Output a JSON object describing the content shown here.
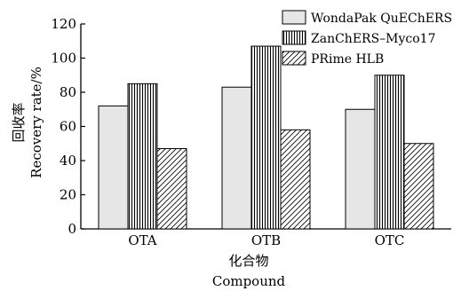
{
  "chart_data": {
    "type": "bar",
    "categories": [
      "OTA",
      "OTB",
      "OTC"
    ],
    "series": [
      {
        "name": "WondaPak QuEChERS",
        "values": [
          72,
          83,
          70
        ],
        "pattern": "solid-light"
      },
      {
        "name": "ZanChERS–Myco17",
        "values": [
          85,
          107,
          90
        ],
        "pattern": "vertical-lines"
      },
      {
        "name": "PRime HLB",
        "values": [
          47,
          58,
          50
        ],
        "pattern": "diagonal-hatch"
      }
    ],
    "title": "",
    "xlabel": "化合物",
    "xlabel_en": "Compound",
    "ylabel": "回收率",
    "ylabel_en": "Recovery rate/%",
    "ylim": [
      0,
      120
    ],
    "yticks": [
      0,
      20,
      40,
      60,
      80,
      100,
      120
    ],
    "grid": false,
    "legend_position": "top-right",
    "colors": {
      "bar_fill_light": "#e6e6e6",
      "stroke": "#000000",
      "background": "#ffffff"
    }
  }
}
